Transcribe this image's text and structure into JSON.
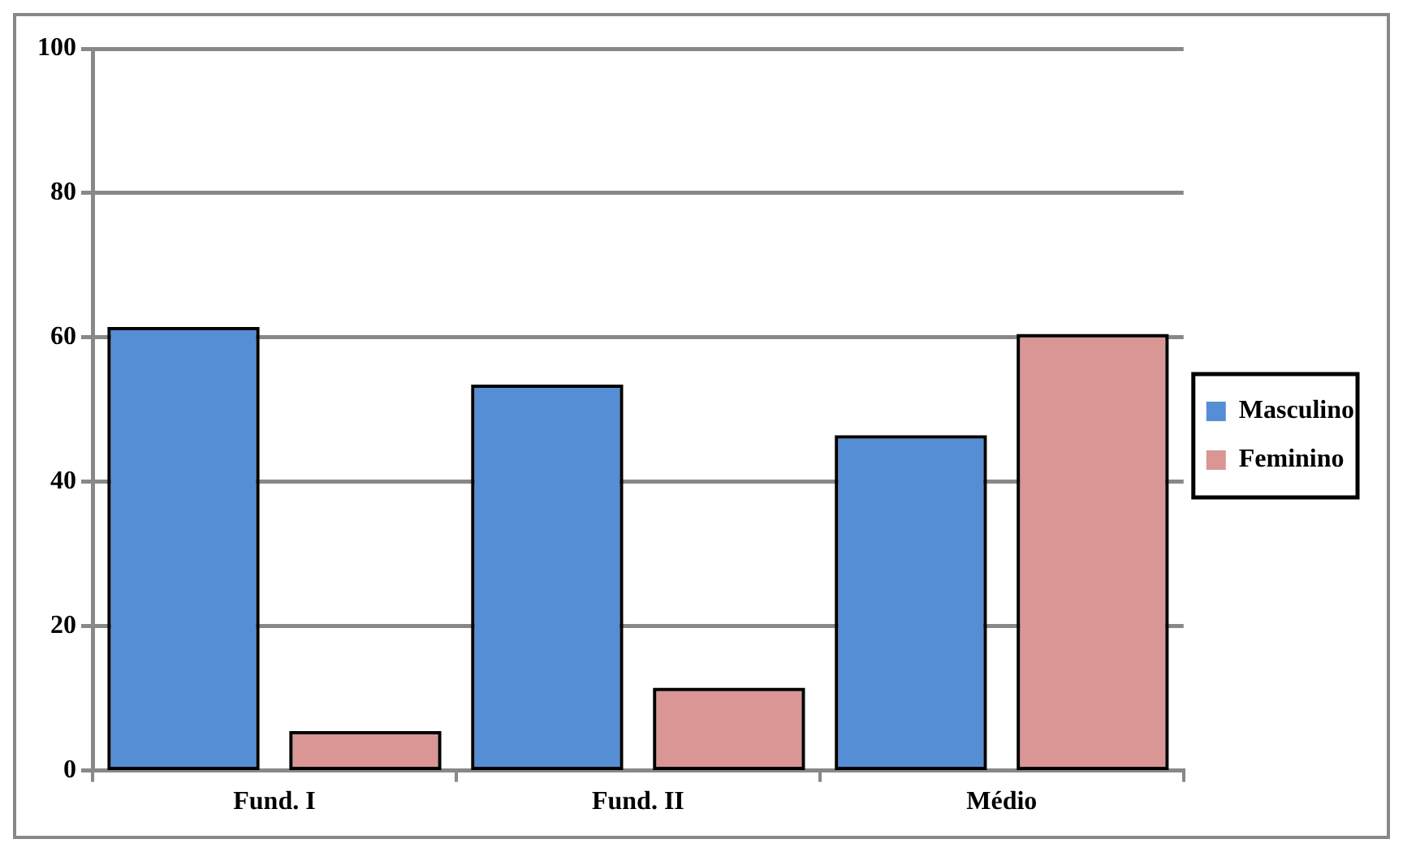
{
  "chart_data": {
    "type": "bar",
    "categories": [
      "Fund. I",
      "Fund. II",
      "Médio"
    ],
    "series": [
      {
        "name": "Masculino",
        "color": "#558ed5",
        "values": [
          61,
          53,
          46
        ]
      },
      {
        "name": "Feminino",
        "color": "#d99694",
        "values": [
          5,
          11,
          60
        ]
      }
    ],
    "ylim": [
      0,
      100
    ],
    "yticks": [
      0,
      20,
      40,
      60,
      80,
      100
    ],
    "grid": "y",
    "legend": "right"
  }
}
